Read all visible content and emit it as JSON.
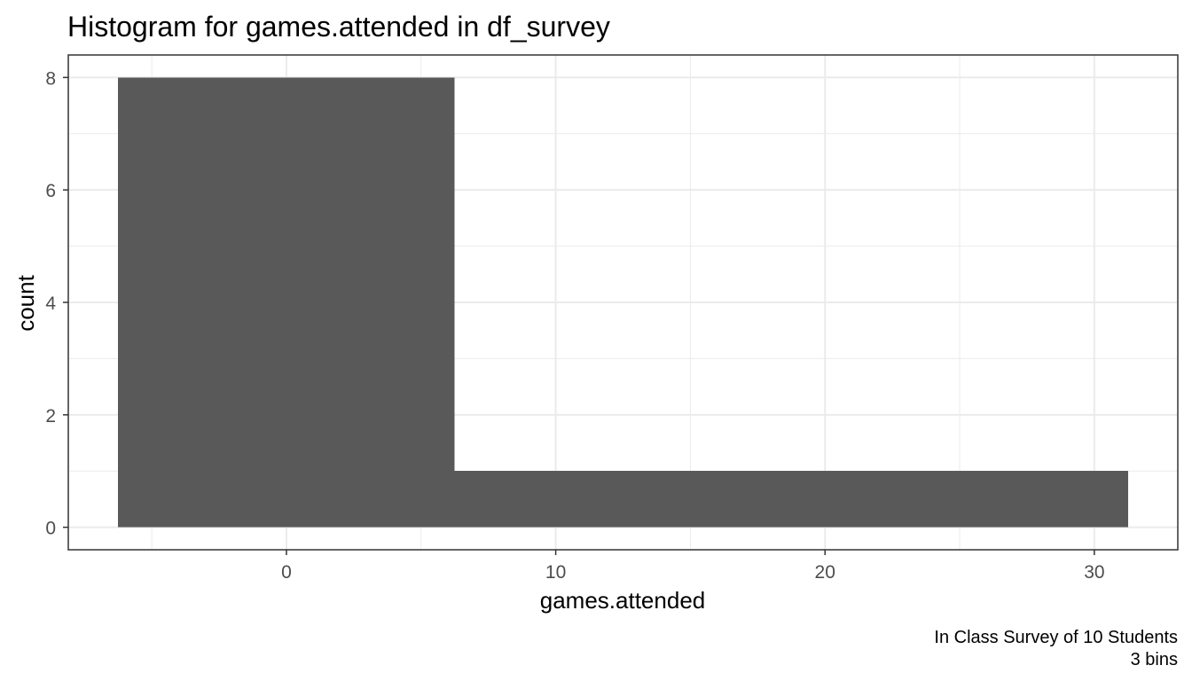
{
  "chart_data": {
    "type": "bar",
    "title": "Histogram for games.attended in df_survey",
    "xlabel": "games.attended",
    "ylabel": "count",
    "caption_lines": [
      "In Class Survey of 10 Students",
      "3 bins"
    ],
    "bins": [
      {
        "x_start": -6.25,
        "x_end": 6.25,
        "count": 8
      },
      {
        "x_start": 6.25,
        "x_end": 18.75,
        "count": 1
      },
      {
        "x_start": 18.75,
        "x_end": 31.25,
        "count": 1
      }
    ],
    "xlim": [
      -8.1,
      33.1
    ],
    "ylim": [
      -0.4,
      8.4
    ],
    "x_ticks": [
      0,
      10,
      20,
      30
    ],
    "x_tick_labels": [
      "0",
      "10",
      "20",
      "30"
    ],
    "y_ticks": [
      0,
      2,
      4,
      6,
      8
    ],
    "y_tick_labels": [
      "0",
      "2",
      "4",
      "6",
      "8"
    ],
    "grid": true,
    "bar_color": "#595959",
    "grid_color": "#ebebeb",
    "panel_border_color": "#333333"
  }
}
